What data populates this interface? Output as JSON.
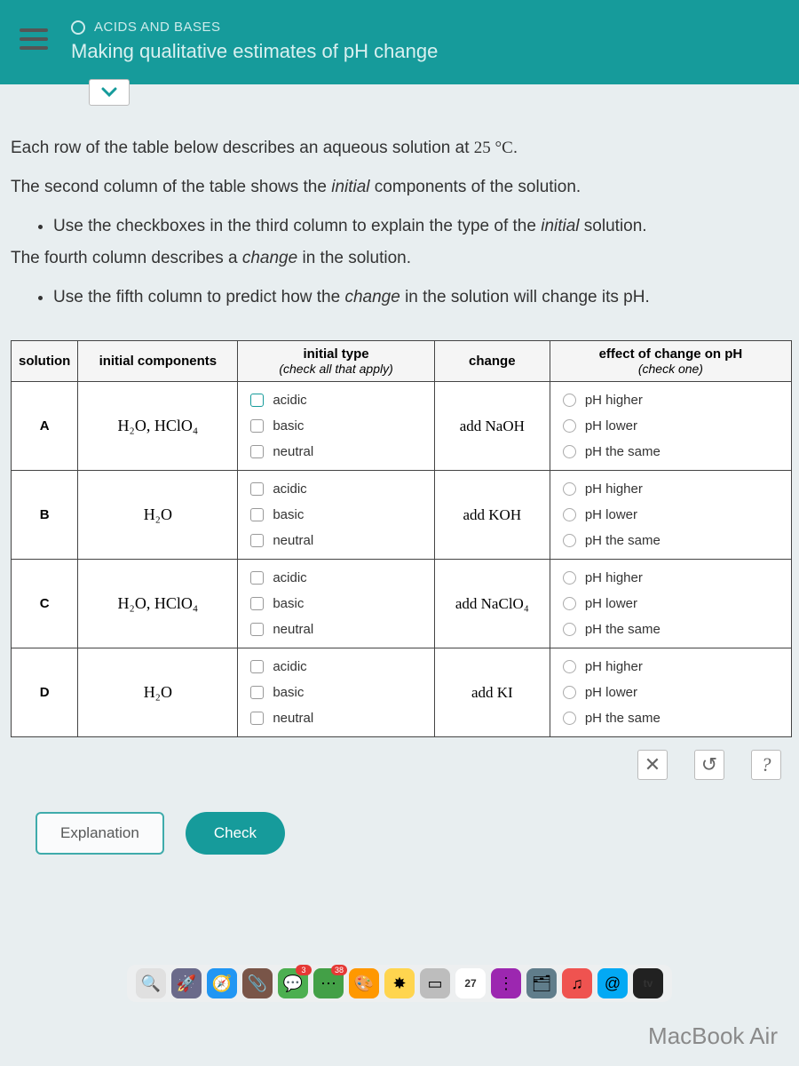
{
  "header": {
    "topic": "ACIDS AND BASES",
    "title": "Making qualitative estimates of pH change"
  },
  "instructions": {
    "p1_a": "Each row of the table below describes an aqueous solution at ",
    "p1_b": "25 °C",
    "p1_c": ".",
    "p2_a": "The second column of the table shows the ",
    "p2_b": "initial",
    "p2_c": " components of the solution.",
    "li1_a": "Use the checkboxes in the third column to explain the type of the ",
    "li1_b": "initial",
    "li1_c": " solution.",
    "p3_a": "The fourth column describes a ",
    "p3_b": "change",
    "p3_c": " in the solution.",
    "li2_a": "Use the fifth column to predict how the ",
    "li2_b": "change",
    "li2_c": " in the solution will change its pH."
  },
  "table": {
    "headers": {
      "solution": "solution",
      "components": "initial components",
      "type": "initial type",
      "type_sub": "(check all that apply)",
      "change": "change",
      "effect": "effect of change on pH",
      "effect_sub": "(check one)"
    },
    "type_options": {
      "acidic": "acidic",
      "basic": "basic",
      "neutral": "neutral"
    },
    "effect_options": {
      "higher": "pH higher",
      "lower": "pH lower",
      "same": "pH the same"
    },
    "rows": [
      {
        "id": "A",
        "components": "H₂O, HClO₄",
        "change": "add NaOH"
      },
      {
        "id": "B",
        "components": "H₂O",
        "change": "add KOH"
      },
      {
        "id": "C",
        "components": "H₂O, HClO₄",
        "change": "add NaClO₄"
      },
      {
        "id": "D",
        "components": "H₂O",
        "change": "add KI"
      }
    ]
  },
  "tools": {
    "close": "✕",
    "reset": "↺",
    "help": "?"
  },
  "buttons": {
    "explanation": "Explanation",
    "check": "Check"
  },
  "dock": {
    "items": [
      {
        "color": "#e0e0e0",
        "glyph": "🔍"
      },
      {
        "color": "#6a6a8a",
        "glyph": "🚀"
      },
      {
        "color": "#2196f3",
        "glyph": "🧭"
      },
      {
        "color": "#795548",
        "glyph": "📎"
      },
      {
        "color": "#4caf50",
        "glyph": "💬",
        "badge": "3"
      },
      {
        "color": "#43a047",
        "glyph": "⋯",
        "badge": "38"
      },
      {
        "color": "#ff9800",
        "glyph": "🎨"
      },
      {
        "color": "#ffd54f",
        "glyph": "✸"
      },
      {
        "color": "#bdbdbd",
        "glyph": "▭"
      },
      {
        "color": "#ffffff",
        "glyph": "27"
      },
      {
        "color": "#9c27b0",
        "glyph": "⋮"
      },
      {
        "color": "#607d8b",
        "glyph": "🗂"
      },
      {
        "color": "#ef5350",
        "glyph": "♫"
      },
      {
        "color": "#03a9f4",
        "glyph": "@"
      },
      {
        "color": "#212121",
        "glyph": "tv"
      }
    ]
  },
  "device": "MacBook Air"
}
